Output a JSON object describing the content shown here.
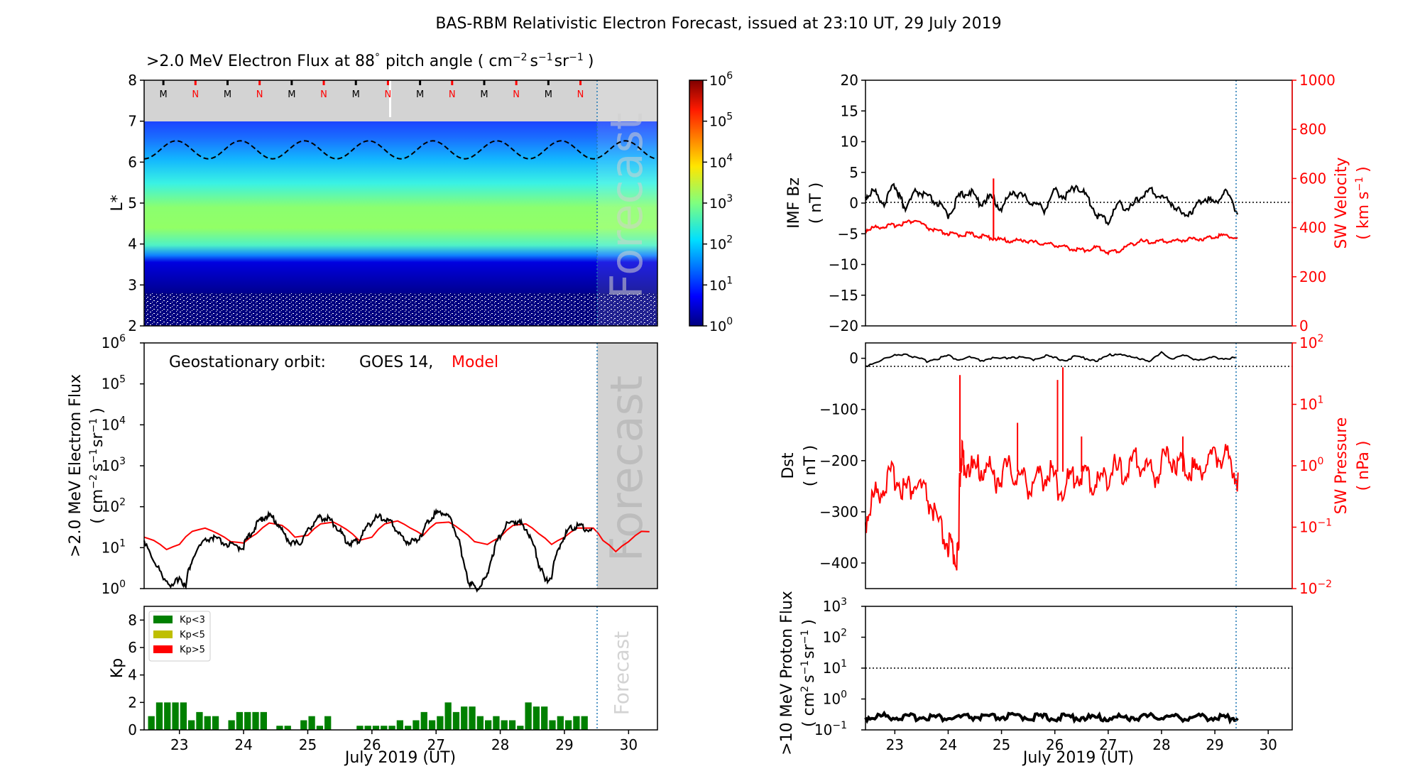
{
  "figure": {
    "suptitle": "BAS-RBM Relativistic Electron Forecast, issued at 23:10 UT, 29 July 2019",
    "forecast_label": "Forecast",
    "xlabel": "July 2019 (UT)",
    "day_ticks": [
      "23",
      "24",
      "25",
      "26",
      "27",
      "28",
      "29",
      "30"
    ]
  },
  "colors": {
    "model": "#ff0000",
    "observed": "#000000",
    "forecast_shade": "#d3d3d3",
    "kp_green": "#008000",
    "kp_yellow": "#bfbf00",
    "kp_red": "#ff0000",
    "forecast_line": "#1f77b4"
  },
  "chart_data": [
    {
      "id": "lstar_flux",
      "type": "heatmap",
      "title": ">2.0 MeV Electron Flux at 88",
      "title_deg": "°",
      "title_units": "pitch angle ( cm",
      "ylabel": "L*",
      "ylim": [
        2,
        8
      ],
      "y_ticks": [
        "2",
        "3",
        "4",
        "5",
        "6",
        "7",
        "8"
      ],
      "x_range_days": [
        22.45,
        30.45
      ],
      "forecast_start_day": 29.45,
      "colorbar": {
        "scale": "log",
        "range": [
          1,
          1000000
        ],
        "ticks": [
          "10",
          "10",
          "10",
          "10",
          "10",
          "10",
          "10"
        ],
        "tick_exps": [
          "0",
          "1",
          "2",
          "3",
          "4",
          "5",
          "6"
        ]
      },
      "mn_marks": [
        "M",
        "N",
        "M",
        "N",
        "M",
        "N",
        "M",
        "N",
        "M",
        "N",
        "M",
        "N",
        "M",
        "N"
      ],
      "boundary_L": {
        "mean": 6.3,
        "amplitude": 0.22
      }
    },
    {
      "id": "geo_flux",
      "type": "line",
      "ylabel": ">2.0 MeV Electron Flux",
      "ylabel2": "( cm",
      "ylim_log": [
        1,
        1000000
      ],
      "y_tick_exps": [
        "0",
        "1",
        "2",
        "3",
        "4",
        "5",
        "6"
      ],
      "legend_prefix": "Geostationary orbit:",
      "legend_obs": "GOES 14,",
      "legend_model": "Model",
      "series": [
        {
          "name": "GOES 14",
          "x": [
            22.45,
            22.6,
            22.75,
            22.9,
            23.0,
            23.1,
            23.2,
            23.35,
            23.5,
            23.6,
            23.75,
            23.9,
            24.0,
            24.1,
            24.2,
            24.3,
            24.4,
            24.5,
            24.6,
            24.7,
            24.8,
            24.9,
            25.0,
            25.1,
            25.2,
            25.3,
            25.4,
            25.5,
            25.6,
            25.7,
            25.8,
            25.9,
            26.0,
            26.1,
            26.2,
            26.3,
            26.4,
            26.5,
            26.6,
            26.7,
            26.8,
            26.9,
            27.0,
            27.1,
            27.2,
            27.3,
            27.4,
            27.5,
            27.6,
            27.7,
            27.8,
            27.9,
            28.0,
            28.1,
            28.2,
            28.3,
            28.4,
            28.5,
            28.6,
            28.7,
            28.8,
            28.9,
            29.0,
            29.1,
            29.2,
            29.3,
            29.45
          ],
          "values": [
            15,
            4,
            2,
            1,
            2,
            1,
            5,
            12,
            18,
            15,
            12,
            10,
            11,
            20,
            35,
            55,
            60,
            45,
            25,
            15,
            12,
            14,
            25,
            42,
            55,
            52,
            40,
            25,
            14,
            13,
            15,
            28,
            45,
            55,
            50,
            40,
            25,
            15,
            14,
            15,
            25,
            50,
            70,
            75,
            55,
            25,
            6,
            1.5,
            1,
            1.2,
            2,
            8,
            20,
            35,
            45,
            40,
            30,
            12,
            4,
            1.5,
            2,
            8,
            20,
            30,
            35,
            30,
            28
          ]
        },
        {
          "name": "Model",
          "x": [
            22.45,
            22.6,
            22.8,
            23.0,
            23.2,
            23.4,
            23.6,
            23.8,
            24.0,
            24.2,
            24.4,
            24.6,
            24.8,
            25.0,
            25.2,
            25.4,
            25.6,
            25.8,
            26.0,
            26.2,
            26.4,
            26.6,
            26.8,
            27.0,
            27.2,
            27.4,
            27.6,
            27.8,
            28.0,
            28.2,
            28.4,
            28.6,
            28.8,
            29.0,
            29.2,
            29.45,
            29.6,
            29.8,
            30.0,
            30.2,
            30.45
          ],
          "values": [
            18,
            15,
            9,
            12,
            25,
            30,
            22,
            14,
            13,
            22,
            40,
            35,
            18,
            20,
            38,
            42,
            28,
            15,
            18,
            38,
            45,
            30,
            20,
            40,
            42,
            26,
            14,
            12,
            18,
            35,
            38,
            22,
            12,
            18,
            30,
            30,
            15,
            8,
            14,
            25,
            24
          ]
        }
      ]
    },
    {
      "id": "kp",
      "type": "bar",
      "ylabel": "Kp",
      "ylim": [
        0,
        9
      ],
      "y_ticks": [
        "0",
        "2",
        "4",
        "6",
        "8"
      ],
      "legend": [
        "Kp<3",
        "Kp<5",
        "Kp>5"
      ],
      "x": [
        22.5,
        22.625,
        22.75,
        22.875,
        23.0,
        23.125,
        23.25,
        23.375,
        23.5,
        23.625,
        23.75,
        23.875,
        24.0,
        24.125,
        24.25,
        24.375,
        24.5,
        24.625,
        24.75,
        24.875,
        25.0,
        25.125,
        25.25,
        25.375,
        25.5,
        25.625,
        25.75,
        25.875,
        26.0,
        26.125,
        26.25,
        26.375,
        26.5,
        26.625,
        26.75,
        26.875,
        27.0,
        27.125,
        27.25,
        27.375,
        27.5,
        27.625,
        27.75,
        27.875,
        28.0,
        28.125,
        28.25,
        28.375,
        28.5,
        28.625,
        28.75,
        28.875,
        29.0,
        29.125,
        29.25,
        29.375
      ],
      "values": [
        1,
        2,
        2,
        2,
        2,
        0.7,
        1.3,
        1,
        1,
        0,
        0.7,
        1.3,
        1.3,
        1.3,
        1.3,
        0,
        0.3,
        0.3,
        0,
        0.7,
        1,
        0.3,
        1,
        0,
        0,
        0,
        0.3,
        0.3,
        0.3,
        0.3,
        0.3,
        0.7,
        0.3,
        0.7,
        1.3,
        0.7,
        1,
        2,
        1.3,
        1.7,
        1.7,
        1,
        0.7,
        1,
        0.7,
        0.7,
        0.3,
        2,
        1.7,
        1.7,
        0.7,
        1,
        0.7,
        1,
        1,
        0
      ]
    },
    {
      "id": "imf_sw",
      "type": "line",
      "ylabel": "IMF Bz",
      "ylabel_unit": "( nT )",
      "ylim": [
        -20,
        20
      ],
      "y_ticks": [
        "-20",
        "-15",
        "-10",
        "-5",
        "0",
        "5",
        "10",
        "15",
        "20"
      ],
      "ylabel_right": "SW Velocity",
      "ylabel_right_unit": "( km s",
      "ylim_right": [
        0,
        1000
      ],
      "y_ticks_right": [
        "0",
        "200",
        "400",
        "600",
        "800",
        "1000"
      ],
      "series": [
        {
          "name": "IMF Bz",
          "x": [
            22.45,
            22.6,
            22.8,
            23.0,
            23.1,
            23.2,
            23.4,
            23.6,
            23.8,
            24.0,
            24.2,
            24.4,
            24.6,
            24.8,
            25.0,
            25.2,
            25.4,
            25.6,
            25.8,
            26.0,
            26.2,
            26.4,
            26.6,
            26.8,
            27.0,
            27.2,
            27.4,
            27.6,
            27.8,
            28.0,
            28.2,
            28.4,
            28.6,
            28.8,
            29.0,
            29.2,
            29.45
          ],
          "values": [
            1,
            2,
            0,
            3,
            1,
            -1,
            2,
            1,
            0,
            -2,
            1,
            2,
            0,
            1,
            -1,
            2,
            1,
            0,
            -1,
            2,
            1,
            3,
            1,
            -2,
            -3,
            0,
            -1,
            1,
            2,
            1,
            0,
            -2,
            -1,
            1,
            0,
            2,
            -2
          ]
        },
        {
          "name": "SW Velocity",
          "x": [
            22.45,
            22.6,
            22.8,
            23.0,
            23.2,
            23.4,
            23.6,
            23.8,
            24.0,
            24.2,
            24.4,
            24.6,
            24.8,
            25.0,
            25.2,
            25.4,
            25.6,
            25.8,
            26.0,
            26.2,
            26.4,
            26.6,
            26.8,
            27.0,
            27.2,
            27.4,
            27.6,
            27.8,
            28.0,
            28.2,
            28.4,
            28.6,
            28.8,
            29.0,
            29.2,
            29.45
          ],
          "values": [
            390,
            400,
            405,
            410,
            420,
            430,
            400,
            385,
            375,
            370,
            375,
            365,
            360,
            350,
            345,
            350,
            340,
            335,
            330,
            320,
            310,
            310,
            320,
            300,
            305,
            330,
            345,
            340,
            345,
            345,
            350,
            355,
            355,
            365,
            370,
            355
          ]
        }
      ]
    },
    {
      "id": "dst_pressure",
      "type": "line",
      "ylabel": "Dst",
      "ylabel_unit": "( nT )",
      "ylim": [
        -450,
        30
      ],
      "y_ticks": [
        "-400",
        "-300",
        "-200",
        "-100",
        "0"
      ],
      "ylabel_right": "SW Pressure",
      "ylabel_right_unit": "( nPa )",
      "ylim_right_log": [
        0.01,
        100
      ],
      "y_tick_exps_right": [
        "-2",
        "-1",
        "0",
        "1",
        "2"
      ],
      "series": [
        {
          "name": "Dst",
          "x": [
            22.45,
            22.7,
            23.0,
            23.2,
            23.4,
            23.6,
            23.8,
            24.0,
            24.2,
            24.4,
            24.6,
            24.8,
            25.0,
            25.2,
            25.4,
            25.6,
            25.8,
            26.0,
            26.2,
            26.4,
            26.6,
            26.8,
            27.0,
            27.2,
            27.4,
            27.6,
            27.8,
            28.0,
            28.2,
            28.4,
            28.6,
            28.8,
            29.0,
            29.2,
            29.45
          ],
          "values": [
            -15,
            -5,
            5,
            10,
            0,
            -5,
            0,
            5,
            -3,
            2,
            -5,
            0,
            -2,
            3,
            0,
            -2,
            5,
            0,
            -3,
            3,
            0,
            -5,
            5,
            10,
            2,
            0,
            -5,
            10,
            0,
            5,
            0,
            -3,
            2,
            0,
            0
          ]
        },
        {
          "name": "SW Pressure",
          "x": [
            22.45,
            22.6,
            22.8,
            23.0,
            23.2,
            23.4,
            23.6,
            23.8,
            24.0,
            24.1,
            24.2,
            24.25,
            24.3,
            24.5,
            24.7,
            24.9,
            25.1,
            25.3,
            25.5,
            25.7,
            25.9,
            26.1,
            26.3,
            26.5,
            26.7,
            26.9,
            27.1,
            27.3,
            27.5,
            27.7,
            27.9,
            28.1,
            28.3,
            28.5,
            28.7,
            28.9,
            29.1,
            29.3,
            29.45
          ],
          "values": [
            0.12,
            0.3,
            0.5,
            0.7,
            0.4,
            0.5,
            0.3,
            0.1,
            0.05,
            0.04,
            0.03,
            1.5,
            1.2,
            0.8,
            1.0,
            0.6,
            0.9,
            0.7,
            0.5,
            0.6,
            0.8,
            0.4,
            0.6,
            0.8,
            0.5,
            0.6,
            0.9,
            0.7,
            1.2,
            1.0,
            0.7,
            1.5,
            1.2,
            1.0,
            0.8,
            1.3,
            1.5,
            1.2,
            0.5
          ]
        }
      ]
    },
    {
      "id": "proton_flux",
      "type": "line",
      "ylabel": ">10 MeV Proton Flux",
      "ylabel2": "( cm",
      "ylim_log": [
        0.1,
        1000
      ],
      "y_tick_exps": [
        "-1",
        "0",
        "1",
        "2",
        "3"
      ],
      "threshold": 10,
      "series": [
        {
          "name": ">10 MeV Proton Flux",
          "x": [
            22.45,
            22.8,
            23.2,
            23.6,
            24.0,
            24.4,
            24.8,
            25.2,
            25.6,
            26.0,
            26.4,
            26.8,
            27.2,
            27.6,
            28.0,
            28.4,
            28.8,
            29.2,
            29.45
          ],
          "values": [
            0.25,
            0.28,
            0.25,
            0.27,
            0.24,
            0.26,
            0.25,
            0.27,
            0.26,
            0.25,
            0.26,
            0.24,
            0.25,
            0.26,
            0.27,
            0.25,
            0.26,
            0.25,
            0.25
          ]
        }
      ]
    }
  ]
}
